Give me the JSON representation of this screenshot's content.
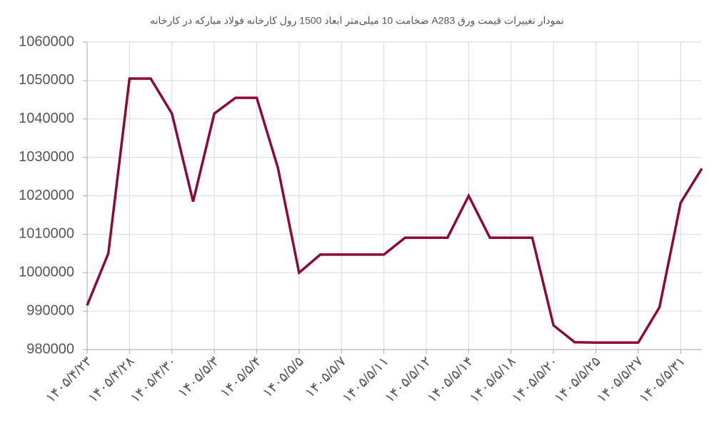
{
  "chart_data": {
    "type": "line",
    "title": "نمودار تغییرات قیمت ورق A283  ضخامت 10 میلی‌متر ابعاد 1500 رول کارخانه فولاد مبارکه در کارخانه",
    "categories": [
      "۱۴۰۵/۴/۲۳",
      null,
      "۱۴۰۵/۴/۲۸",
      null,
      "۱۴۰۵/۴/۳۰",
      null,
      "۱۴۰۵/۵/۳",
      null,
      "۱۴۰۵/۵/۴",
      null,
      "۱۴۰۵/۵/۵",
      null,
      "۱۴۰۵/۵/۷",
      null,
      "۱۴۰۵/۵/۱۱",
      null,
      "۱۴۰۵/۵/۱۲",
      null,
      "۱۴۰۵/۵/۱۴",
      null,
      "۱۴۰۵/۵/۱۸",
      null,
      "۱۴۰۵/۵/۲۰",
      null,
      "۱۴۰۵/۵/۲۵",
      null,
      "۱۴۰۵/۵/۲۷",
      null,
      "۱۴۰۵/۵/۳۱",
      null
    ],
    "series": [
      {
        "color": "#8b0a3a",
        "values": [
          991500,
          1005000,
          1050500,
          1050500,
          1041400,
          1018500,
          1041400,
          1045500,
          1045500,
          1027300,
          1000000,
          1004700,
          1004700,
          1004700,
          1004700,
          1009100,
          1009100,
          1009100,
          1020000,
          1009100,
          1009100,
          1009100,
          986300,
          981900,
          981800,
          981800,
          981800,
          991000,
          1018200,
          1027100
        ]
      }
    ],
    "ylim": [
      980000,
      1060000
    ],
    "yticks": [
      980000,
      990000,
      1000000,
      1010000,
      1020000,
      1030000,
      1040000,
      1050000,
      1060000
    ],
    "grid": true
  }
}
